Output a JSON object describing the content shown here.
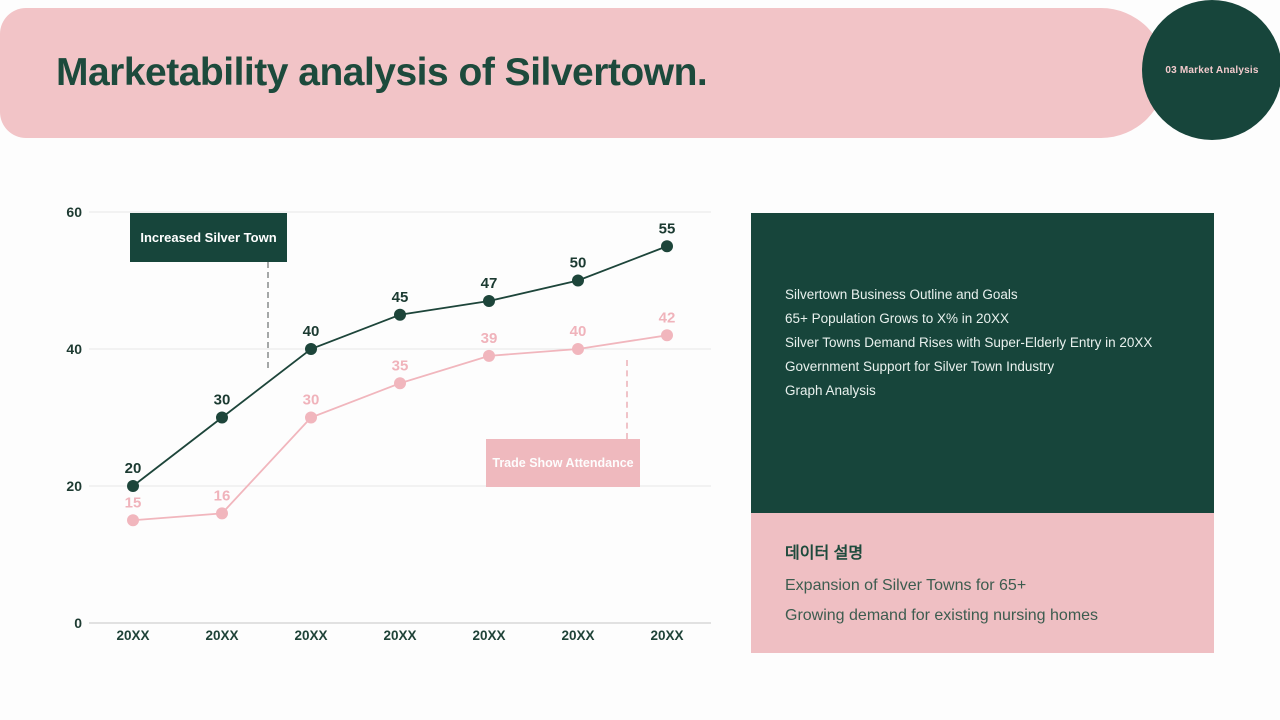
{
  "header": {
    "title": "Marketability analysis of Silvertown.",
    "badge": "03 Market Analysis"
  },
  "chart_data": {
    "type": "line",
    "categories": [
      "20XX",
      "20XX",
      "20XX",
      "20XX",
      "20XX",
      "20XX",
      "20XX"
    ],
    "series": [
      {
        "name": "Increased Silver Town",
        "values": [
          20,
          30,
          40,
          45,
          47,
          50,
          55
        ],
        "color": "#1d453a",
        "label_color": "#1b3a31"
      },
      {
        "name": "Trade Show Attendance",
        "values": [
          15,
          16,
          30,
          35,
          39,
          40,
          42
        ],
        "color": "#f1b6bd",
        "label_color": "#f0b3bb"
      }
    ],
    "title": "",
    "xlabel": "",
    "ylabel": "",
    "ylim": [
      0,
      60
    ],
    "yticks": [
      0,
      20,
      40,
      60
    ],
    "grid": true,
    "legend_position": "on-chart-annotation-boxes"
  },
  "annotations": {
    "series1_label": "Increased Silver Town",
    "series2_label": "Trade Show Attendance"
  },
  "info_panel": {
    "lines": [
      "Silvertown Business Outline and Goals",
      "65+ Population Grows to X% in 20XX",
      "Silver Towns Demand Rises with Super-Elderly Entry in 20XX",
      "Government Support for Silver Town Industry",
      "Graph Analysis"
    ]
  },
  "description_panel": {
    "title": "데이터 설명",
    "lines": [
      "Expansion of Silver Towns for 65+",
      "Growing demand for existing nursing homes"
    ]
  },
  "colors": {
    "header_pink": "#f2c4c7",
    "panel_pink": "#efbfc3",
    "dark_green": "#17453b",
    "series_green": "#1d453a",
    "series_pink": "#f1b6bd",
    "grid": "#e8e8e8",
    "axis": "#d8d8d8"
  }
}
